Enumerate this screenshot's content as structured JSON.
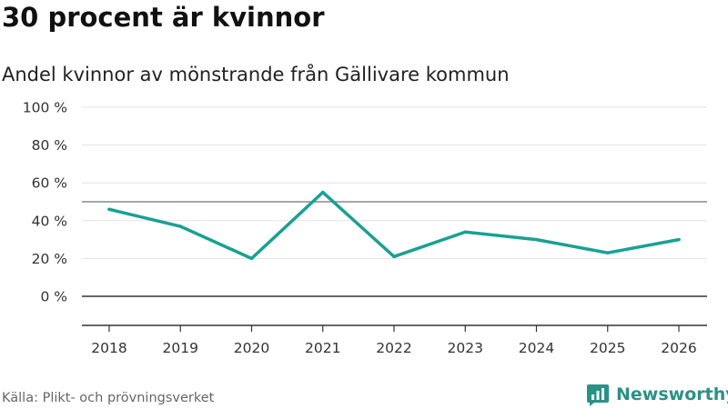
{
  "title": "30 procent är kvinnor",
  "subtitle": "Andel kvinnor av mönstrande från Gällivare kommun",
  "source": "Källa: Plikt- och prövningsverket",
  "brand": {
    "name": "Newsworthy",
    "icon": "newsworthy-logo-icon",
    "color": "#2a9187"
  },
  "colors": {
    "line": "#1aa094",
    "grid": "#e3e3e3",
    "reference": "#888888",
    "zero": "#333333"
  },
  "chart_data": {
    "type": "line",
    "title": "30 procent är kvinnor",
    "subtitle": "Andel kvinnor av mönstrande från Gällivare kommun",
    "x": [
      "2018",
      "2019",
      "2020",
      "2021",
      "2022",
      "2023",
      "2024",
      "2025",
      "2026"
    ],
    "series": [
      {
        "name": "Andel kvinnor",
        "values": [
          46,
          37,
          20,
          55,
          21,
          34,
          30,
          23,
          30
        ]
      }
    ],
    "y_ticks": [
      0,
      20,
      40,
      60,
      80,
      100
    ],
    "y_tick_labels": [
      "0 %",
      "20 %",
      "40 %",
      "60 %",
      "80 %",
      "100 %"
    ],
    "ylim": [
      -15,
      100
    ],
    "reference_line": 50,
    "xlabel": "",
    "ylabel": "",
    "grid": true,
    "legend": "none"
  }
}
